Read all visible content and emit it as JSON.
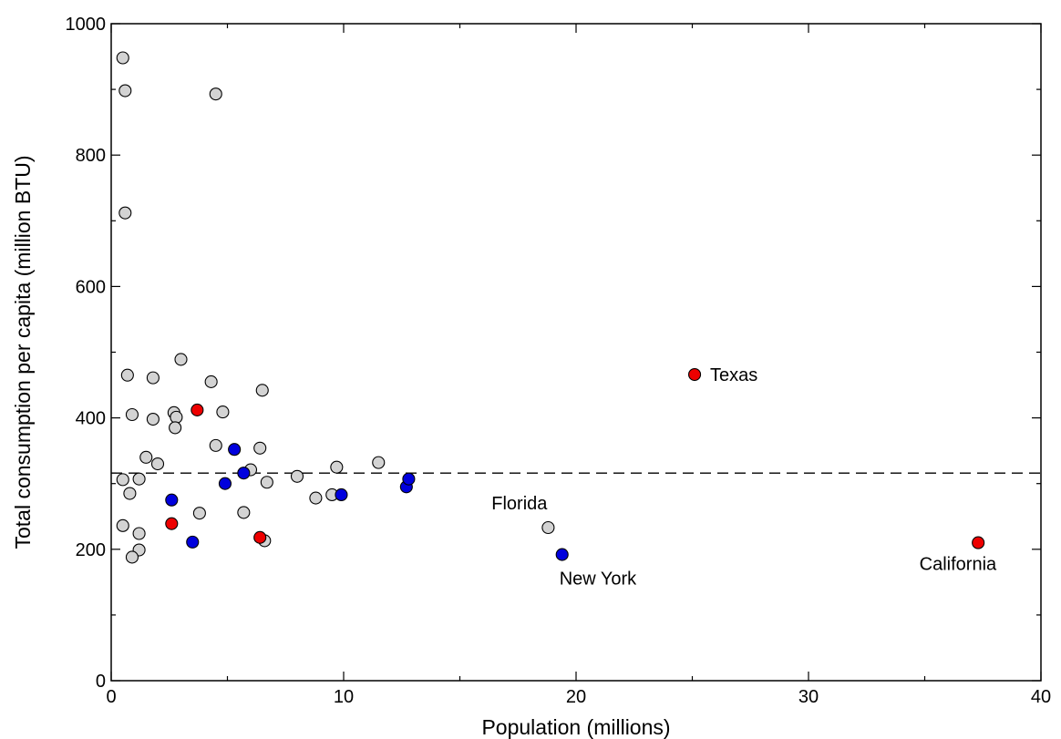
{
  "chart_data": {
    "type": "scatter",
    "xlabel": "Population (millions)",
    "ylabel": "Total consumption per capita (million BTU)",
    "xlim": [
      0,
      40
    ],
    "ylim": [
      0,
      1000
    ],
    "x_major_ticks": [
      0,
      10,
      20,
      30,
      40
    ],
    "y_major_ticks": [
      0,
      200,
      400,
      600,
      800,
      1000
    ],
    "x_minor_step": 5,
    "y_minor_step": 100,
    "grid": false,
    "reference_line": {
      "y": 316,
      "style": "dashed"
    },
    "colors": {
      "gray": "#d3d3d3",
      "red": "#ee0000",
      "blue": "#0000dd"
    },
    "series": [
      {
        "color": "gray",
        "points": [
          [
            0.5,
            948
          ],
          [
            0.6,
            898
          ],
          [
            0.6,
            712
          ],
          [
            4.5,
            893
          ],
          [
            0.7,
            465
          ],
          [
            1.8,
            461
          ],
          [
            3.0,
            489
          ],
          [
            4.3,
            455
          ],
          [
            6.5,
            442
          ],
          [
            0.9,
            405
          ],
          [
            1.8,
            398
          ],
          [
            2.7,
            408
          ],
          [
            2.8,
            401
          ],
          [
            2.75,
            385
          ],
          [
            4.8,
            409
          ],
          [
            1.5,
            340
          ],
          [
            2.0,
            330
          ],
          [
            4.5,
            358
          ],
          [
            6.4,
            354
          ],
          [
            0.5,
            306
          ],
          [
            1.2,
            307
          ],
          [
            0.8,
            285
          ],
          [
            6.0,
            321
          ],
          [
            6.7,
            302
          ],
          [
            8.0,
            311
          ],
          [
            9.7,
            325
          ],
          [
            11.5,
            332
          ],
          [
            8.8,
            278
          ],
          [
            9.5,
            283
          ],
          [
            0.5,
            236
          ],
          [
            1.2,
            224
          ],
          [
            3.8,
            255
          ],
          [
            5.7,
            256
          ],
          [
            1.2,
            199
          ],
          [
            0.9,
            188
          ],
          [
            6.6,
            213
          ],
          [
            18.8,
            233
          ]
        ]
      },
      {
        "color": "red",
        "points": [
          [
            3.7,
            412
          ],
          [
            2.6,
            239
          ],
          [
            6.4,
            218
          ],
          [
            25.1,
            466
          ],
          [
            37.3,
            210
          ]
        ]
      },
      {
        "color": "blue",
        "points": [
          [
            5.3,
            352
          ],
          [
            5.7,
            316
          ],
          [
            4.9,
            300
          ],
          [
            2.6,
            275
          ],
          [
            3.5,
            211
          ],
          [
            9.9,
            283
          ],
          [
            12.7,
            295
          ],
          [
            12.8,
            307
          ],
          [
            19.4,
            192
          ]
        ]
      }
    ],
    "annotations": [
      {
        "text": "Texas",
        "x": 25.1,
        "y": 466,
        "anchor": "right"
      },
      {
        "text": "Florida",
        "x": 18.8,
        "y": 233,
        "anchor": "above-left"
      },
      {
        "text": "New York",
        "x": 19.4,
        "y": 192,
        "anchor": "below-right"
      },
      {
        "text": "California",
        "x": 37.3,
        "y": 210,
        "anchor": "below-left"
      }
    ]
  }
}
